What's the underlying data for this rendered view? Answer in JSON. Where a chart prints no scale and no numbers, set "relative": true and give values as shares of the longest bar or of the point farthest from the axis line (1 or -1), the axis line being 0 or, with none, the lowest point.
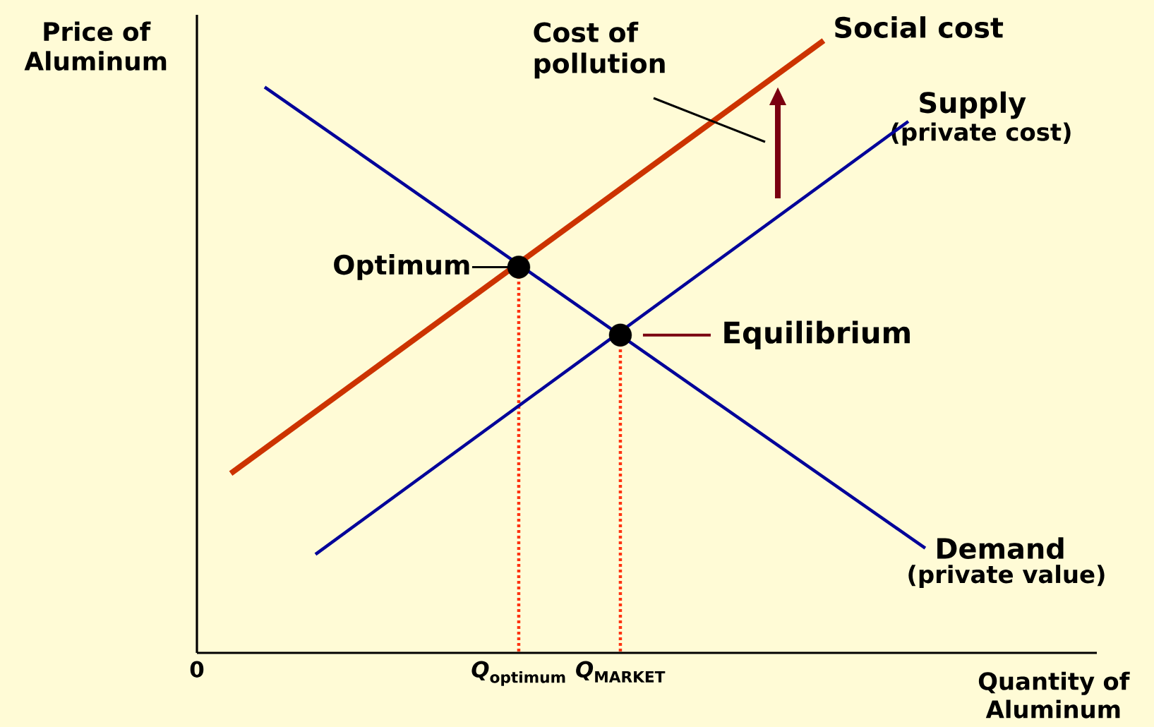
{
  "chart_data": {
    "type": "line",
    "relative": true,
    "xlabel": "Quantity of Aluminum",
    "ylabel": "Price of Aluminum",
    "categories": [
      "0",
      null,
      null,
      null,
      null,
      null,
      null,
      null,
      null,
      null,
      null,
      null,
      null,
      null,
      null,
      null,
      null,
      null,
      null,
      "*Q*$_{optimum}$",
      null,
      null,
      null,
      null,
      null,
      "*Q*$_{MARKET}$",
      null,
      null,
      null,
      null,
      null,
      null,
      null,
      null,
      null,
      null,
      null,
      null,
      null,
      null,
      null,
      null,
      null,
      null,
      null,
      null,
      null,
      null,
      null,
      null,
      null,
      null,
      null,
      null
    ],
    "series": [
      {
        "name": "Social cost",
        "color": "#cc3300",
        "values": [
          null,
          null,
          0.293,
          null,
          null,
          null,
          null,
          null,
          null,
          null,
          null,
          null,
          null,
          null,
          null,
          null,
          null,
          null,
          null,
          null,
          null,
          null,
          null,
          null,
          null,
          null,
          null,
          null,
          null,
          null,
          null,
          null,
          null,
          null,
          null,
          null,
          null,
          1.0,
          null,
          null,
          null,
          null,
          null,
          null,
          null,
          null,
          null,
          null,
          null,
          null,
          null,
          null,
          null,
          null
        ]
      },
      {
        "name": "Supply",
        "color": "#000099",
        "values": [
          null,
          null,
          null,
          null,
          null,
          null,
          null,
          0.161,
          null,
          null,
          null,
          null,
          null,
          null,
          null,
          null,
          null,
          null,
          null,
          null,
          null,
          null,
          null,
          null,
          null,
          null,
          null,
          null,
          null,
          null,
          null,
          null,
          null,
          null,
          null,
          null,
          null,
          null,
          null,
          null,
          null,
          null,
          0.868,
          null,
          null,
          null,
          null,
          null,
          null,
          null,
          null,
          null,
          null,
          null
        ]
      },
      {
        "name": "Demand",
        "color": "#000099",
        "values": [
          null,
          null,
          null,
          null,
          0.924,
          null,
          null,
          null,
          null,
          null,
          null,
          null,
          null,
          null,
          null,
          null,
          null,
          null,
          null,
          null,
          null,
          null,
          null,
          null,
          null,
          null,
          null,
          null,
          null,
          null,
          null,
          null,
          null,
          null,
          null,
          null,
          null,
          null,
          null,
          null,
          null,
          null,
          null,
          0.171,
          null,
          null,
          null,
          null,
          null,
          null,
          null,
          null,
          null,
          null
        ]
      },
      {
        "type": "scatter",
        "color": "#000000",
        "marker": "circle",
        "values": [
          null,
          null,
          null,
          null,
          null,
          null,
          null,
          null,
          null,
          null,
          null,
          null,
          null,
          null,
          null,
          null,
          null,
          null,
          null,
          0.63,
          null,
          null,
          null,
          null,
          null,
          0.519,
          null,
          null,
          null,
          null,
          null,
          null,
          null,
          null,
          null,
          null,
          null,
          null,
          null,
          null,
          null,
          null,
          null,
          null,
          null,
          null,
          null,
          null,
          null,
          null,
          null,
          null,
          null,
          null
        ]
      }
    ],
    "annotations": [
      "Cost of pollution",
      "Optimum",
      "Equilibrium",
      "(private cost)",
      "(private value)"
    ]
  }
}
